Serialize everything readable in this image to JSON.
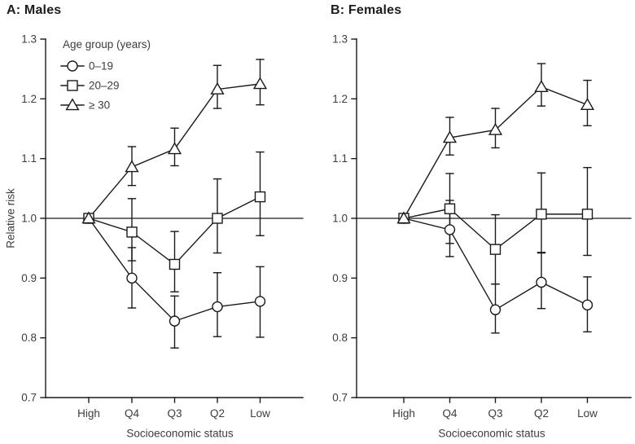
{
  "figure": {
    "panel_a_title": "A: Males",
    "panel_b_title": "B: Females",
    "ylabel": "Relative risk",
    "xlabel_a": "Socioeconomic status",
    "xlabel_b": "Socioeconomic status",
    "line_color": "#1a1a1a",
    "text_color": "#3d3d3d"
  },
  "chart_data": [
    {
      "type": "line",
      "panel": "A",
      "title": "A: Males",
      "xlabel": "Socioeconomic status",
      "ylabel": "Relative risk",
      "ylim": [
        0.7,
        1.3
      ],
      "yticks": [
        "1.3",
        "1.2",
        "1.1",
        "1.0",
        "0.9",
        "0.8",
        "0.7"
      ],
      "ytick_values": [
        1.3,
        1.2,
        1.1,
        1.0,
        0.9,
        0.8,
        0.7
      ],
      "categories": [
        "High",
        "Q4",
        "Q3",
        "Q2",
        "Low"
      ],
      "reference_line": 1.0,
      "grid": false,
      "legend": {
        "title": "Age group (years)",
        "position": "top-left",
        "items": [
          {
            "label": "0–19",
            "marker": "circle"
          },
          {
            "label": "20–29",
            "marker": "square"
          },
          {
            "label": "≥ 30",
            "marker": "triangle"
          }
        ]
      },
      "series": [
        {
          "name": "0–19",
          "marker": "circle",
          "values": [
            1.0,
            0.9,
            0.828,
            0.852,
            0.861
          ],
          "ci_low": [
            null,
            0.85,
            0.783,
            0.802,
            0.801
          ],
          "ci_high": [
            null,
            0.951,
            0.87,
            0.909,
            0.919
          ]
        },
        {
          "name": "20–29",
          "marker": "square",
          "values": [
            1.0,
            0.977,
            0.923,
            1.0,
            1.036
          ],
          "ci_low": [
            null,
            0.929,
            0.877,
            0.942,
            0.971
          ],
          "ci_high": [
            null,
            1.033,
            0.978,
            1.066,
            1.111
          ]
        },
        {
          "name": "≥ 30",
          "marker": "triangle",
          "values": [
            1.0,
            1.086,
            1.116,
            1.216,
            1.225
          ],
          "ci_low": [
            null,
            1.055,
            1.088,
            1.184,
            1.19
          ],
          "ci_high": [
            null,
            1.12,
            1.151,
            1.256,
            1.266
          ]
        }
      ]
    },
    {
      "type": "line",
      "panel": "B",
      "title": "B: Females",
      "xlabel": "Socioeconomic status",
      "ylabel": "Relative risk",
      "ylim": [
        0.7,
        1.3
      ],
      "yticks": [
        "1.3",
        "1.2",
        "1.1",
        "1.0",
        "0.9",
        "0.8",
        "0.7"
      ],
      "ytick_values": [
        1.3,
        1.2,
        1.1,
        1.0,
        0.9,
        0.8,
        0.7
      ],
      "categories": [
        "High",
        "Q4",
        "Q3",
        "Q2",
        "Low"
      ],
      "reference_line": 1.0,
      "grid": false,
      "legend": null,
      "series": [
        {
          "name": "0–19",
          "marker": "circle",
          "values": [
            1.0,
            0.981,
            0.847,
            0.893,
            0.855
          ],
          "ci_low": [
            null,
            0.936,
            0.808,
            0.849,
            0.81
          ],
          "ci_high": [
            null,
            1.03,
            0.89,
            0.943,
            0.902
          ]
        },
        {
          "name": "20–29",
          "marker": "square",
          "values": [
            1.0,
            1.016,
            0.948,
            1.007,
            1.007
          ],
          "ci_low": [
            null,
            0.958,
            0.89,
            0.942,
            0.938
          ],
          "ci_high": [
            null,
            1.075,
            1.006,
            1.076,
            1.085
          ]
        },
        {
          "name": "≥ 30",
          "marker": "triangle",
          "values": [
            1.0,
            1.135,
            1.148,
            1.22,
            1.19
          ],
          "ci_low": [
            null,
            1.106,
            1.118,
            1.188,
            1.155
          ],
          "ci_high": [
            null,
            1.169,
            1.184,
            1.259,
            1.231
          ]
        }
      ]
    }
  ]
}
